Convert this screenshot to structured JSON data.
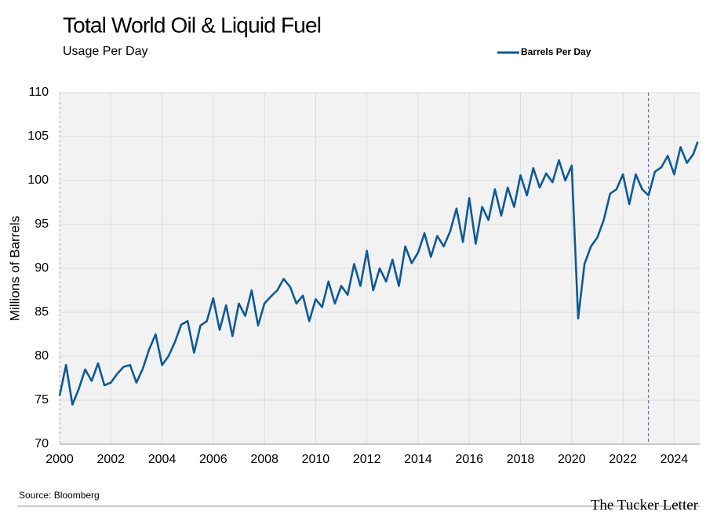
{
  "chart_data": {
    "type": "line",
    "title": "Total World Oil & Liquid Fuel",
    "subtitle": "Usage Per Day",
    "y_label": "Millions of Barrels",
    "source": "Source: Bloomberg",
    "brand": "The Tucker Letter",
    "x": [
      2000,
      2000.25,
      2000.5,
      2000.75,
      2001,
      2001.25,
      2001.5,
      2001.75,
      2002,
      2002.25,
      2002.5,
      2002.75,
      2003,
      2003.25,
      2003.5,
      2003.75,
      2004,
      2004.25,
      2004.5,
      2004.75,
      2005,
      2005.25,
      2005.5,
      2005.75,
      2006,
      2006.25,
      2006.5,
      2006.75,
      2007,
      2007.25,
      2007.5,
      2007.75,
      2008,
      2008.25,
      2008.5,
      2008.75,
      2009,
      2009.25,
      2009.5,
      2009.75,
      2010,
      2010.25,
      2010.5,
      2010.75,
      2011,
      2011.25,
      2011.5,
      2011.75,
      2012,
      2012.25,
      2012.5,
      2012.75,
      2013,
      2013.25,
      2013.5,
      2013.75,
      2014,
      2014.25,
      2014.5,
      2014.75,
      2015,
      2015.25,
      2015.5,
      2015.75,
      2016,
      2016.25,
      2016.5,
      2016.75,
      2017,
      2017.25,
      2017.5,
      2017.75,
      2018,
      2018.25,
      2018.5,
      2018.75,
      2019,
      2019.25,
      2019.5,
      2019.75,
      2020,
      2020.25,
      2020.5,
      2020.75,
      2021,
      2021.25,
      2021.5,
      2021.75,
      2022,
      2022.25,
      2022.5,
      2022.75,
      2023,
      2023.25,
      2023.5,
      2023.75,
      2024,
      2024.25,
      2024.5,
      2024.75,
      2024.92
    ],
    "series": [
      {
        "name": "Barrels Per Day",
        "color": "#0f5a94",
        "values": [
          75.5,
          79.0,
          74.5,
          76.3,
          78.5,
          77.2,
          79.2,
          76.7,
          77.0,
          78.0,
          78.8,
          79.0,
          77.0,
          78.6,
          80.8,
          82.5,
          79.0,
          80.0,
          81.6,
          83.6,
          84.0,
          80.4,
          83.5,
          84.0,
          86.6,
          83.0,
          85.8,
          82.3,
          86.0,
          84.6,
          87.5,
          83.5,
          86.0,
          86.8,
          87.5,
          88.8,
          87.9,
          86.0,
          86.9,
          84.0,
          86.5,
          85.6,
          88.5,
          86.0,
          88.0,
          87.0,
          90.5,
          88.0,
          92.0,
          87.5,
          90.0,
          88.5,
          91.0,
          88.0,
          92.5,
          90.6,
          91.8,
          94.0,
          91.3,
          93.7,
          92.5,
          94.2,
          96.8,
          93.0,
          98.0,
          92.8,
          97.0,
          95.5,
          99.0,
          96.0,
          99.2,
          97.0,
          100.6,
          98.3,
          101.4,
          99.2,
          100.8,
          99.8,
          102.3,
          100.0,
          101.7,
          84.3,
          90.5,
          92.5,
          93.5,
          95.5,
          98.5,
          99.0,
          100.7,
          97.3,
          100.7,
          99.0,
          98.3,
          101.0,
          101.5,
          102.8,
          100.7,
          103.8,
          102.0,
          103.0,
          104.4
        ]
      }
    ],
    "reference_line": 2023,
    "xlim": [
      2000,
      2025
    ],
    "xticks": [
      2000,
      2002,
      2004,
      2006,
      2008,
      2010,
      2012,
      2014,
      2016,
      2018,
      2020,
      2022,
      2024
    ],
    "ylim": [
      70,
      110
    ],
    "yticks": [
      70,
      75,
      80,
      85,
      90,
      95,
      100,
      105,
      110
    ],
    "grid": true,
    "legend": "top-right"
  }
}
